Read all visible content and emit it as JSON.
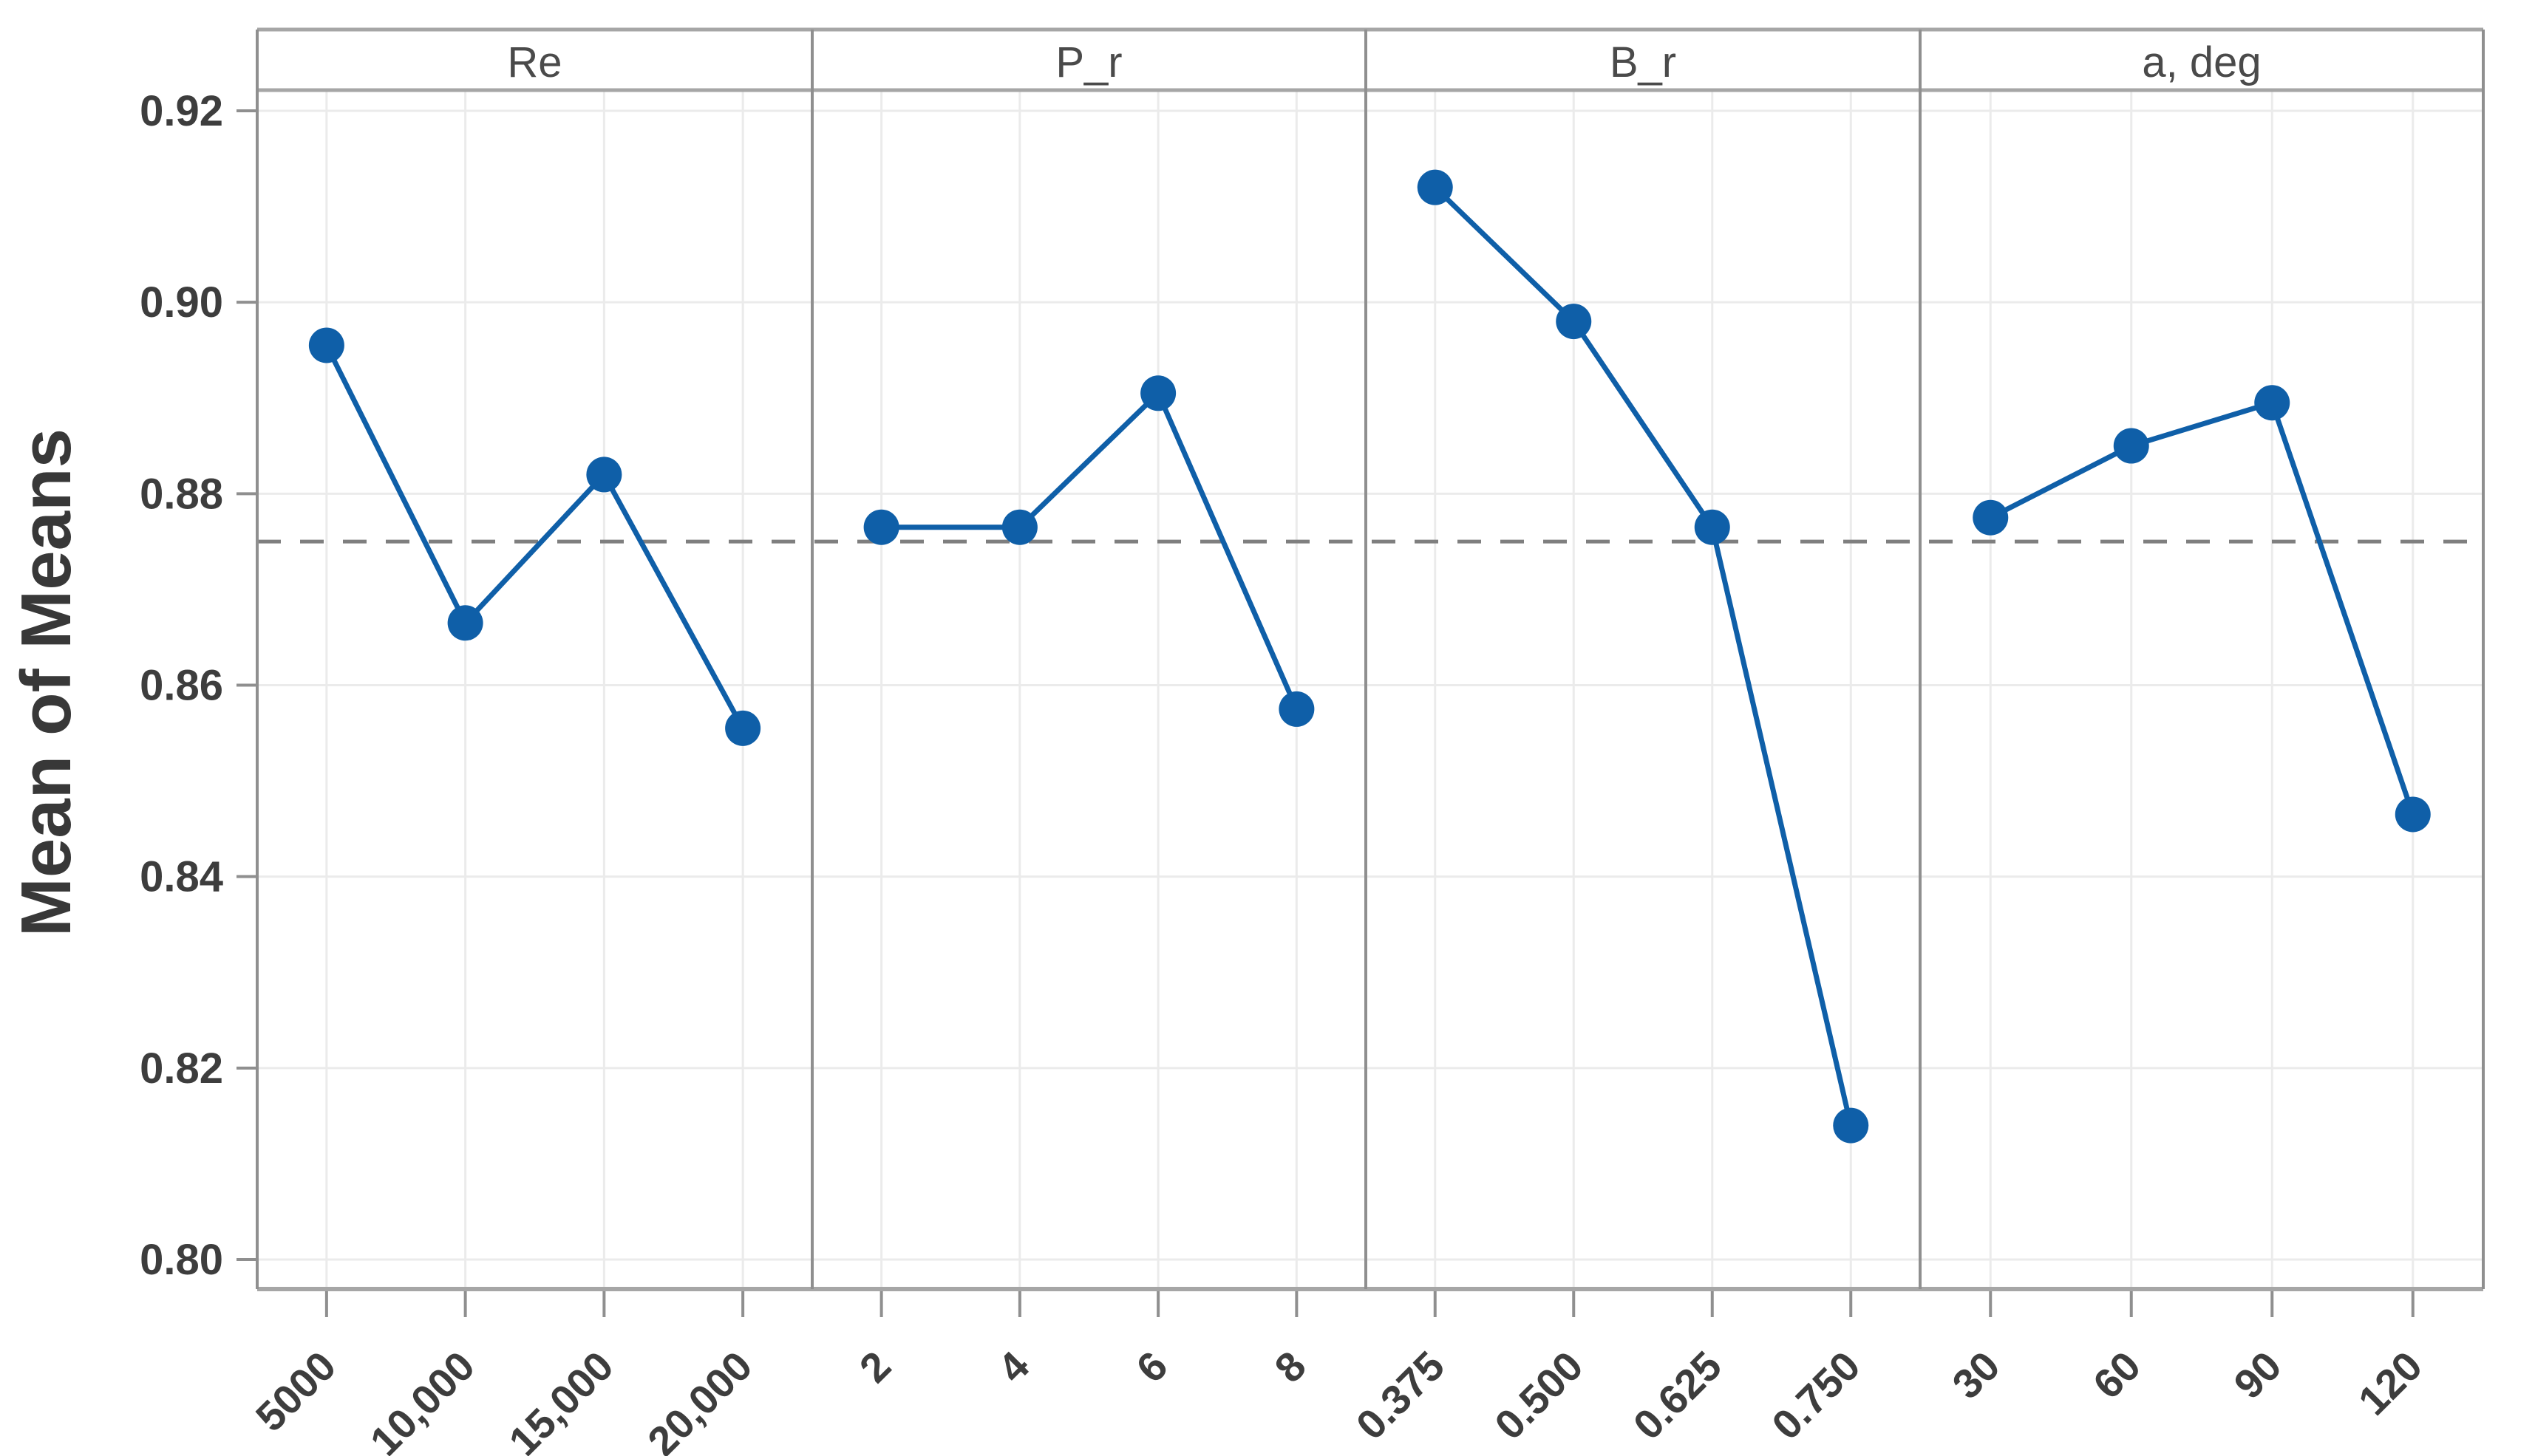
{
  "chart_data": {
    "type": "line",
    "title": "",
    "ylabel": "Mean of Means",
    "ylim": [
      0.8,
      0.92
    ],
    "y_ticks": [
      0.92,
      0.9,
      0.88,
      0.86,
      0.84,
      0.82,
      0.8
    ],
    "grid": true,
    "reference_line": 0.875,
    "reference_line_style": "dashed",
    "panels": [
      {
        "label": "Re",
        "categories": [
          "5000",
          "10,000",
          "15,000",
          "20,000"
        ],
        "values": [
          0.8955,
          0.8665,
          0.882,
          0.8555
        ]
      },
      {
        "label": "P_r",
        "categories": [
          "2",
          "4",
          "6",
          "8"
        ],
        "values": [
          0.8765,
          0.8765,
          0.8905,
          0.8575
        ]
      },
      {
        "label": "B_r",
        "categories": [
          "0.375",
          "0.500",
          "0.625",
          "0.750"
        ],
        "values": [
          0.912,
          0.898,
          0.8765,
          0.814
        ]
      },
      {
        "label": "a, deg",
        "categories": [
          "30",
          "60",
          "90",
          "120"
        ],
        "values": [
          0.8775,
          0.885,
          0.8895,
          0.8465
        ]
      }
    ],
    "colors": {
      "line": "#0F5FA8",
      "marker": "#0F5FA8",
      "reference": "#7F7F7F",
      "grid": "#EBEBEB",
      "border": "#8F8F8F",
      "frame": "#A6A6A6",
      "text": "#3D3D3D",
      "header_text": "#4A4A4A",
      "background": "#FFFFFF"
    }
  }
}
